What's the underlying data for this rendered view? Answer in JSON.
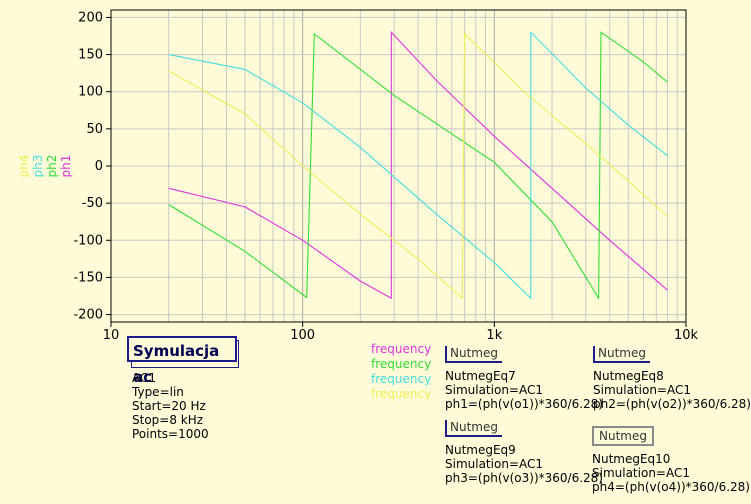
{
  "chart_data": {
    "type": "line",
    "xscale": "log",
    "xlim": [
      10,
      10000
    ],
    "ylim": [
      -210,
      210
    ],
    "grid": true,
    "x_ticks": [
      {
        "v": 10,
        "label": "10"
      },
      {
        "v": 100,
        "label": "100"
      },
      {
        "v": 1000,
        "label": "1k"
      },
      {
        "v": 10000,
        "label": "10k"
      }
    ],
    "y_ticks": [
      200,
      150,
      100,
      50,
      0,
      -50,
      -100,
      -150,
      -200
    ],
    "y_labels": [
      {
        "text": "ph4",
        "color": "#eeee55"
      },
      {
        "text": "ph3",
        "color": "#44dddd"
      },
      {
        "text": "ph2",
        "color": "#33dd33"
      },
      {
        "text": "ph1",
        "color": "#dd33dd"
      }
    ],
    "series": [
      {
        "name": "ph1",
        "color": "#dd33dd",
        "points": [
          [
            20,
            -30
          ],
          [
            50,
            -55
          ],
          [
            100,
            -100
          ],
          [
            200,
            -155
          ],
          [
            290,
            -178
          ],
          [
            290,
            180
          ],
          [
            500,
            115
          ],
          [
            1000,
            40
          ],
          [
            2000,
            -30
          ],
          [
            4000,
            -100
          ],
          [
            8000,
            -167
          ]
        ]
      },
      {
        "name": "ph2",
        "color": "#33dd33",
        "points": [
          [
            20,
            -52
          ],
          [
            50,
            -115
          ],
          [
            105,
            -177
          ],
          [
            115,
            178
          ],
          [
            300,
            95
          ],
          [
            1000,
            5
          ],
          [
            2000,
            -75
          ],
          [
            3500,
            -178
          ],
          [
            3600,
            180
          ],
          [
            6000,
            140
          ],
          [
            8000,
            113
          ]
        ]
      },
      {
        "name": "ph3",
        "color": "#44dddd",
        "points": [
          [
            20,
            150
          ],
          [
            50,
            130
          ],
          [
            100,
            85
          ],
          [
            200,
            25
          ],
          [
            500,
            -65
          ],
          [
            1000,
            -130
          ],
          [
            1550,
            -178
          ],
          [
            1550,
            180
          ],
          [
            3000,
            105
          ],
          [
            5000,
            55
          ],
          [
            8000,
            14
          ]
        ]
      },
      {
        "name": "ph4",
        "color": "#eeee55",
        "points": [
          [
            20,
            128
          ],
          [
            50,
            70
          ],
          [
            100,
            0
          ],
          [
            200,
            -65
          ],
          [
            400,
            -125
          ],
          [
            680,
            -178
          ],
          [
            700,
            178
          ],
          [
            1500,
            95
          ],
          [
            3000,
            30
          ],
          [
            5000,
            -20
          ],
          [
            8000,
            -68
          ]
        ]
      }
    ]
  },
  "simulation": {
    "title": "Symulacja ac",
    "lines": [
      "AC1",
      "Type=lin",
      "Start=20 Hz",
      "Stop=8 kHz",
      "Points=1000"
    ]
  },
  "legend": [
    {
      "text": "frequency",
      "color": "#dd33dd"
    },
    {
      "text": "frequency",
      "color": "#33dd33"
    },
    {
      "text": "frequency",
      "color": "#44dddd"
    },
    {
      "text": "frequency",
      "color": "#eeee55"
    }
  ],
  "nutmegs": [
    {
      "header": "Nutmeg",
      "lines": [
        "NutmegEq7",
        "Simulation=AC1",
        "ph1=(ph(v(o1))*360/6.28)"
      ]
    },
    {
      "header": "Nutmeg",
      "lines": [
        "NutmegEq8",
        "Simulation=AC1",
        "ph2=(ph(v(o2))*360/6.28)"
      ]
    },
    {
      "header": "Nutmeg",
      "lines": [
        "NutmegEq9",
        "Simulation=AC1",
        "ph3=(ph(v(o3))*360/6.28)"
      ]
    },
    {
      "header": "Nutmeg",
      "lines": [
        "NutmegEq10",
        "Simulation=AC1",
        "ph4=(ph(v(o4))*360/6.28)"
      ]
    }
  ]
}
